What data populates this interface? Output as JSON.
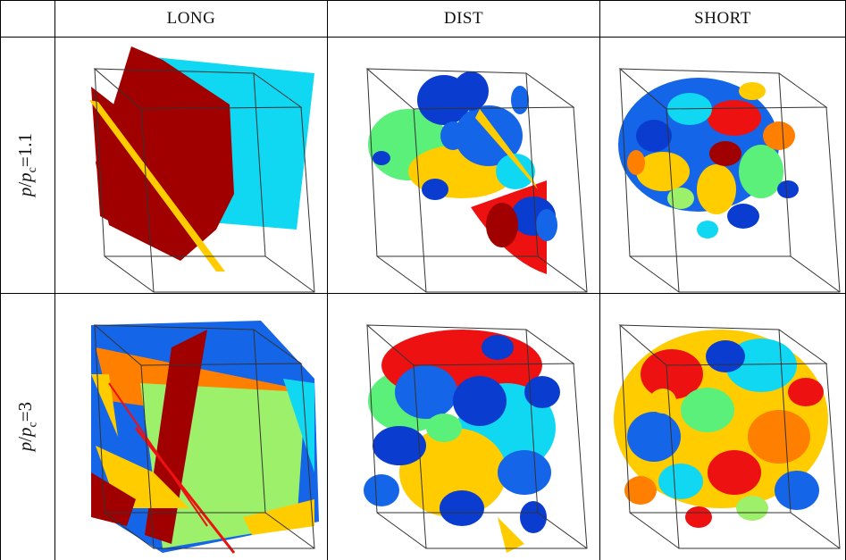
{
  "columns": [
    "LONG",
    "DIST",
    "SHORT"
  ],
  "rows": [
    {
      "var": "p",
      "slash": "/",
      "var2": "p",
      "sub": "c",
      "value": "=1.1"
    },
    {
      "var": "p",
      "slash": "/",
      "var2": "p",
      "sub": "c",
      "value": "=3"
    }
  ],
  "colors": {
    "dark_red": "#a00000",
    "red": "#ee1111",
    "cyan": "#10d8f2",
    "blue": "#0a3ccf",
    "mid_blue": "#1565e8",
    "gold": "#ffcc00",
    "orange": "#ff7f00",
    "light_green": "#9df06a",
    "green": "#5af07a",
    "teal": "#22e6c8"
  }
}
